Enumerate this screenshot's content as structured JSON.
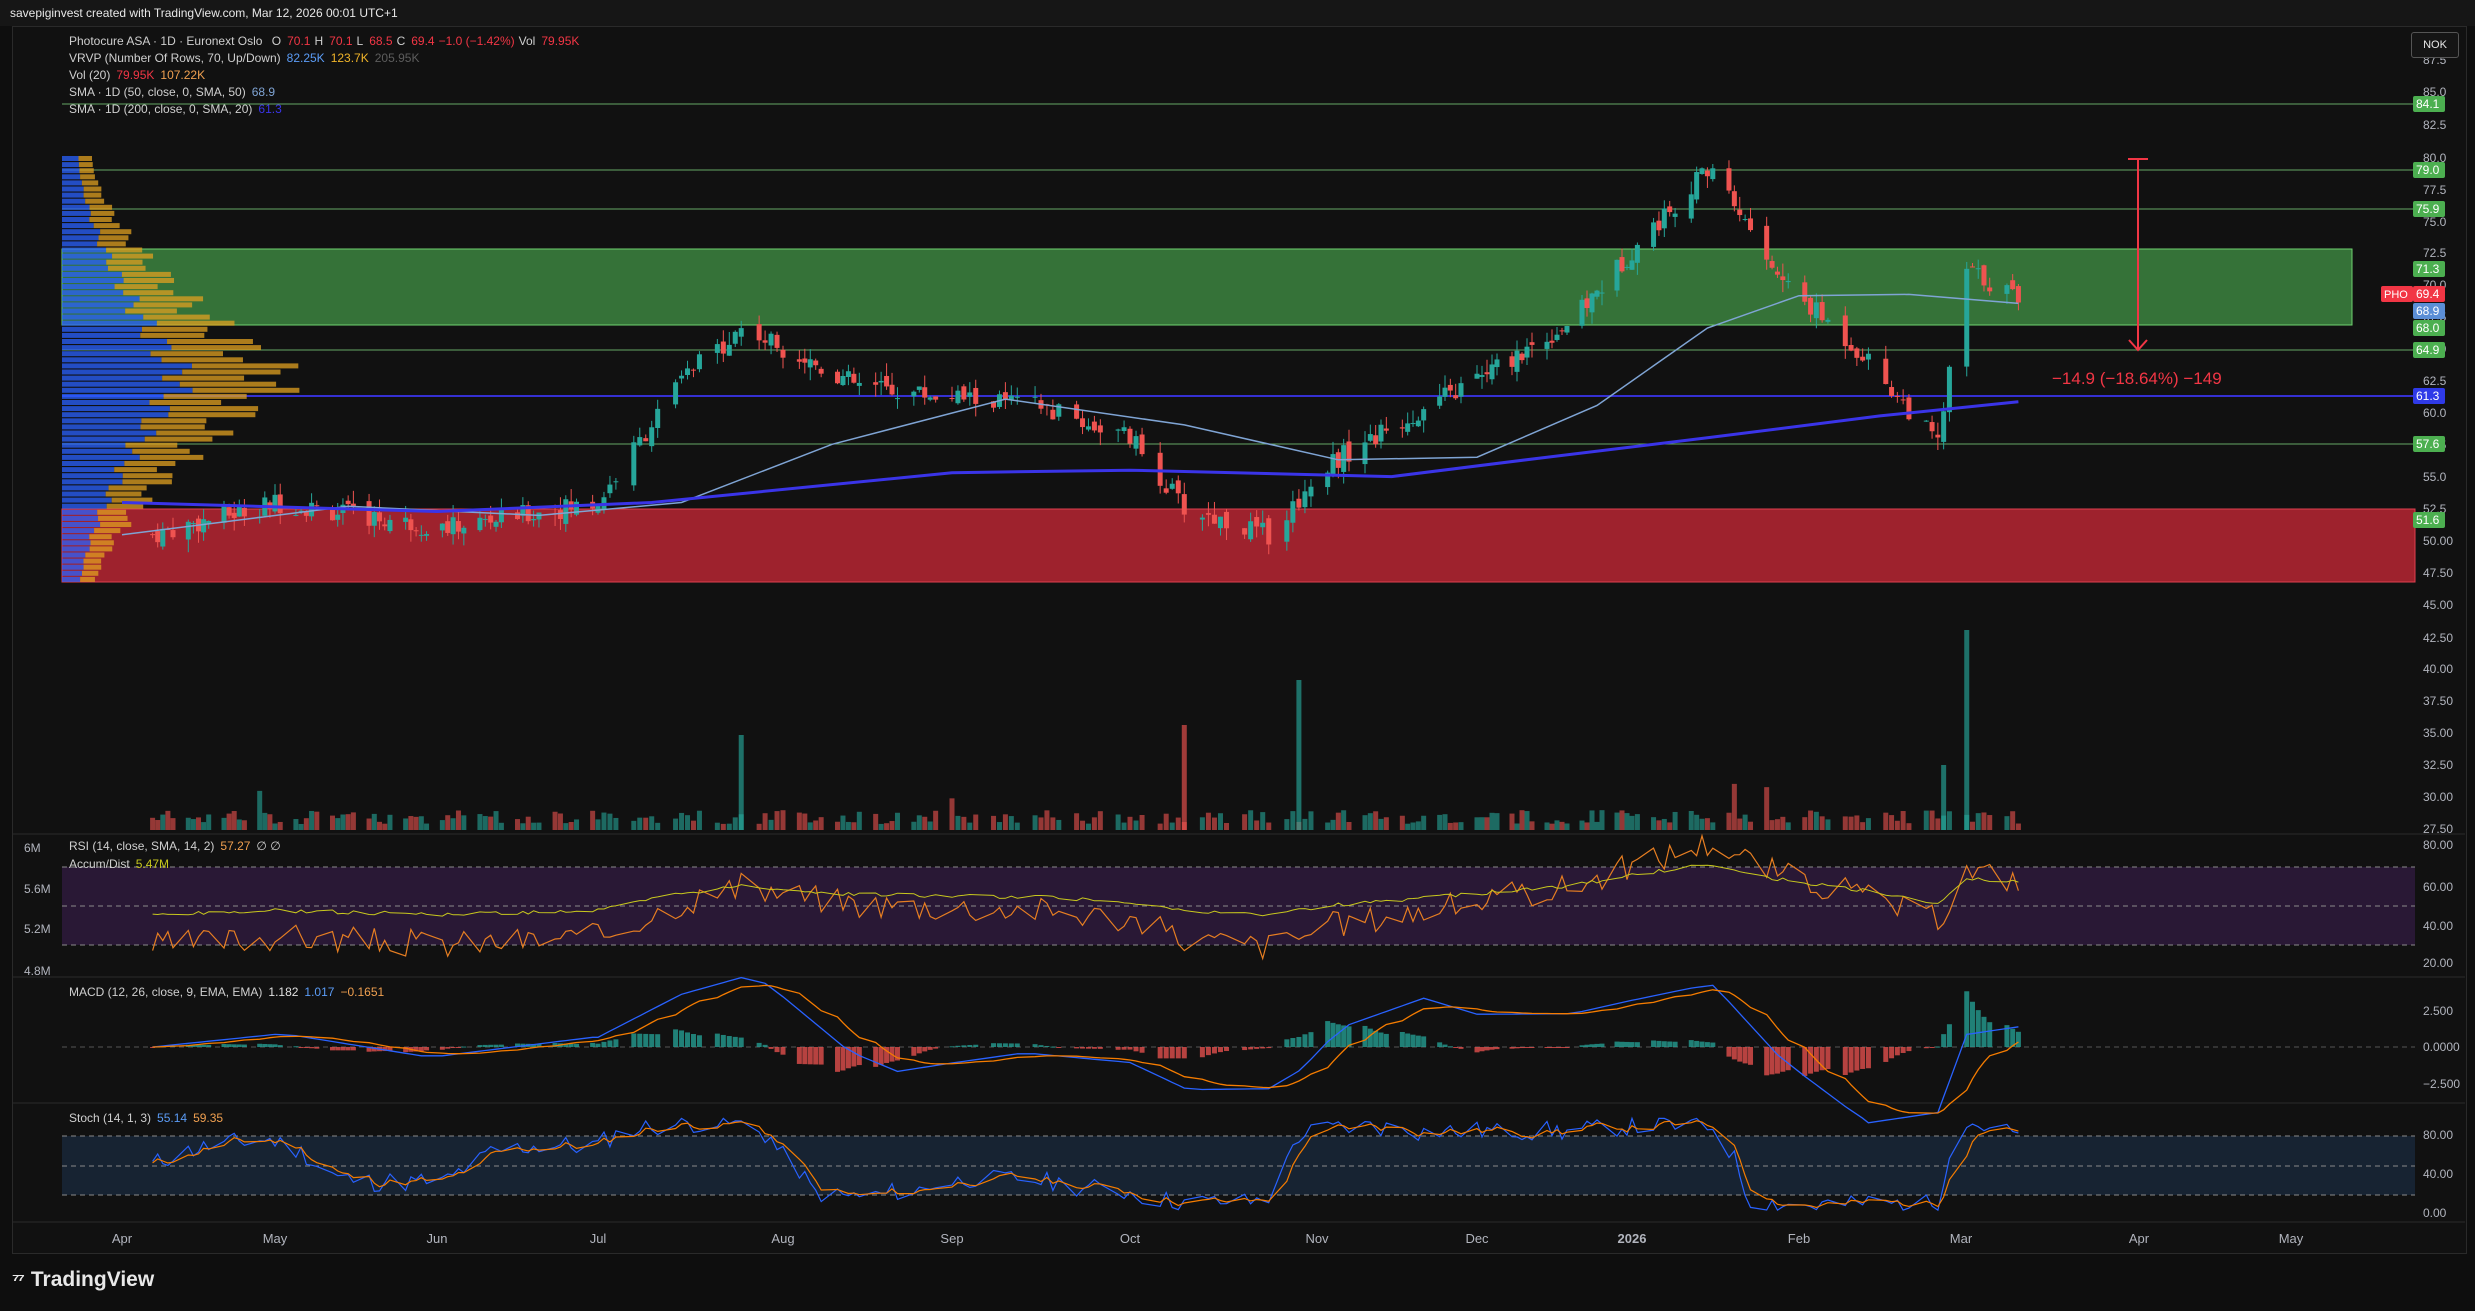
{
  "header": {
    "text": "savepiginvest created with TradingView.com, Mar 12, 2026 00:01 UTC+1"
  },
  "legend": {
    "symbol": "Photocure ASA · 1D · Euronext Oslo",
    "o_label": "O",
    "o": "70.1",
    "h_label": "H",
    "h": "70.1",
    "l_label": "L",
    "l": "68.5",
    "c_label": "C",
    "c": "69.4",
    "change": "−1.0 (−1.42%)",
    "vol_label": "Vol",
    "vol": "79.95K",
    "vrvp": "VRVP (Number Of Rows, 70, Up/Down)",
    "vrvp_up": "82.25K",
    "vrvp_down": "123.7K",
    "vrvp_total": "205.95K",
    "vol20": "Vol (20)",
    "vol20_a": "79.95K",
    "vol20_b": "107.22K",
    "sma50": "SMA · 1D (50, close, 0, SMA, 50)",
    "sma50_val": "68.9",
    "sma200": "SMA · 1D (200, close, 0, SMA, 20)",
    "sma200_val": "61.3",
    "rsi": "RSI (14, close, SMA, 14, 2)",
    "rsi_val": "57.27",
    "rsi_extra": "∅ ∅",
    "accum": "Accum/Dist",
    "accum_val": "5.47M",
    "macd": "MACD (12, 26, close, 9, EMA, EMA)",
    "macd_a": "1.182",
    "macd_b": "1.017",
    "macd_c": "−0.1651",
    "stoch": "Stoch (14, 1, 3)",
    "stoch_a": "55.14",
    "stoch_b": "59.35"
  },
  "currency": "NOK",
  "brand": "TradingView",
  "colors": {
    "up": "#26a69a",
    "down": "#ef5350",
    "sma50": "#7fa4d4",
    "sma200": "#3a34e8",
    "green_zone": "#4caf50",
    "red_zone": "#c62836",
    "label_green": "#4caf50",
    "label_red": "#f23645"
  },
  "price_axis_ticks": [
    "87.5",
    "85.0",
    "82.5",
    "80.0",
    "77.5",
    "75.0",
    "72.5",
    "70.0",
    "67.5",
    "65.0",
    "62.5",
    "60.0",
    "57.5",
    "55.0",
    "52.5",
    "50.00",
    "47.50",
    "45.00",
    "42.50",
    "40.00",
    "37.50",
    "35.00",
    "32.50",
    "30.00",
    "27.50"
  ],
  "level_labels": {
    "l84": "84.1",
    "l79": "79.0",
    "l75": "75.9",
    "l71": "71.3",
    "l69": "69.4",
    "l689": "68.9",
    "l68": "68.0",
    "l649": "64.9",
    "l613": "61.3",
    "l576": "57.6",
    "l516": "51.6",
    "pho": "PHO"
  },
  "measure_text": "−14.9 (−18.64%) −149",
  "accum_axis": [
    "6M",
    "5.6M",
    "5.2M",
    "4.8M"
  ],
  "rsi_axis": [
    "80.00",
    "60.00",
    "40.00",
    "20.00"
  ],
  "macd_axis": [
    "2.500",
    "0.0000",
    "−2.500"
  ],
  "stoch_axis": [
    "80.00",
    "40.00",
    "0.00"
  ],
  "time_axis": [
    "Apr",
    "May",
    "Jun",
    "Jul",
    "Aug",
    "Sep",
    "Oct",
    "Nov",
    "Dec",
    "2026",
    "Feb",
    "Mar",
    "Apr",
    "May"
  ],
  "chart_data": {
    "type": "candlestick",
    "title": "Photocure ASA · 1D · Euronext Oslo",
    "x_range": [
      "2025-03-27",
      "2026-05-31"
    ],
    "ylim": [
      46,
      88
    ],
    "key_points": [
      {
        "date": "2025-04-07",
        "close": 51.0
      },
      {
        "date": "2025-05-01",
        "close": 53.5
      },
      {
        "date": "2025-06-02",
        "close": 51.5
      },
      {
        "date": "2025-07-01",
        "close": 53.5
      },
      {
        "date": "2025-07-15",
        "close": 63.0
      },
      {
        "date": "2025-07-25",
        "close": 67.0
      },
      {
        "date": "2025-08-15",
        "close": 62.5
      },
      {
        "date": "2025-09-15",
        "close": 61.0
      },
      {
        "date": "2025-10-01",
        "close": 58.5
      },
      {
        "date": "2025-10-10",
        "close": 53.0
      },
      {
        "date": "2025-10-24",
        "close": 51.0
      },
      {
        "date": "2025-11-03",
        "close": 56.5
      },
      {
        "date": "2025-12-01",
        "close": 63.0
      },
      {
        "date": "2025-12-20",
        "close": 67.5
      },
      {
        "date": "2026-01-12",
        "close": 78.0
      },
      {
        "date": "2026-01-16",
        "close": 79.5
      },
      {
        "date": "2026-01-28",
        "close": 71.0
      },
      {
        "date": "2026-02-12",
        "close": 65.0
      },
      {
        "date": "2026-02-25",
        "close": 58.0
      },
      {
        "date": "2026-03-02",
        "close": 71.5
      },
      {
        "date": "2026-03-11",
        "close": 69.4
      }
    ],
    "levels": [
      84.1,
      79.0,
      75.9,
      64.9,
      61.3,
      57.6,
      51.6
    ],
    "zones": [
      {
        "name": "green",
        "from": 67.5,
        "to": 73.2
      },
      {
        "name": "red",
        "from": 46.8,
        "to": 52.3
      }
    ],
    "sma50_last": 68.9,
    "sma200_last": 61.3
  }
}
